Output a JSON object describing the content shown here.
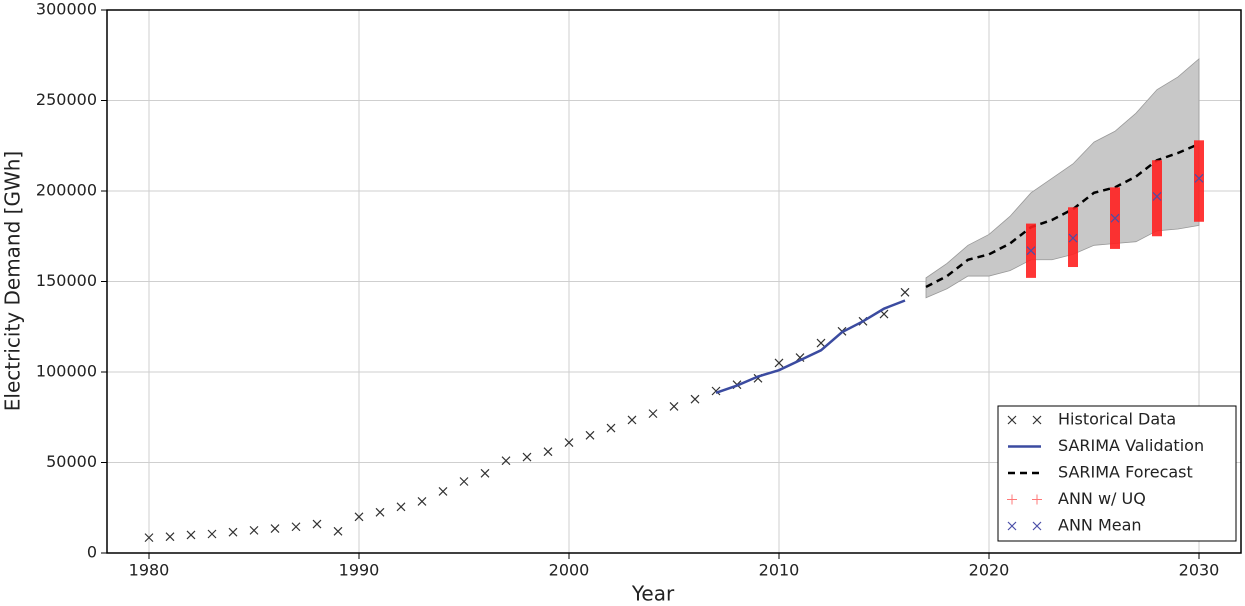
{
  "chart_data": {
    "type": "line",
    "xlabel": "Year",
    "ylabel": "Electricity Demand [GWh]",
    "xlim": [
      1978,
      2032
    ],
    "ylim": [
      0,
      300000
    ],
    "xticks": [
      1980,
      1990,
      2000,
      2010,
      2020,
      2030
    ],
    "yticks": [
      0,
      50000,
      100000,
      150000,
      200000,
      250000,
      300000
    ],
    "grid": true,
    "legend": "lower right",
    "series": [
      {
        "name": "Historical Data",
        "style": "x-marker",
        "color": "#333333",
        "x": [
          1980,
          1981,
          1982,
          1983,
          1984,
          1985,
          1986,
          1987,
          1988,
          1989,
          1990,
          1991,
          1992,
          1993,
          1994,
          1995,
          1996,
          1997,
          1998,
          1999,
          2000,
          2001,
          2002,
          2003,
          2004,
          2005,
          2006,
          2007,
          2008,
          2009,
          2010,
          2011,
          2012,
          2013,
          2014,
          2015,
          2016
        ],
        "values": [
          8500,
          9000,
          10000,
          10500,
          11500,
          12500,
          13500,
          14500,
          16000,
          12000,
          20000,
          22500,
          25500,
          28500,
          34000,
          39500,
          44000,
          51000,
          53000,
          56000,
          61000,
          65000,
          69000,
          73500,
          77000,
          81000,
          85000,
          89500,
          93000,
          96500,
          105000,
          108000,
          116000,
          122500,
          128000,
          132000,
          144000
        ]
      },
      {
        "name": "SARIMA Validation",
        "style": "line",
        "color": "#3b4ba0",
        "x": [
          2007,
          2008,
          2009,
          2010,
          2011,
          2012,
          2013,
          2014,
          2015,
          2016
        ],
        "values": [
          88500,
          92500,
          97500,
          101000,
          106500,
          112000,
          122000,
          128000,
          135000,
          139500
        ]
      },
      {
        "name": "SARIMA Forecast",
        "style": "dashed",
        "color": "#000000",
        "x": [
          2017,
          2018,
          2019,
          2020,
          2021,
          2022,
          2023,
          2024,
          2025,
          2026,
          2027,
          2028,
          2029,
          2030
        ],
        "values": [
          147000,
          153000,
          162000,
          165000,
          171000,
          180000,
          184000,
          190000,
          199000,
          202000,
          208000,
          217000,
          221000,
          226000
        ]
      },
      {
        "name": "ANN w/ UQ",
        "style": "range",
        "color": "#ff2020",
        "x": [
          2022,
          2024,
          2026,
          2028,
          2030
        ],
        "low": [
          152000,
          158000,
          168000,
          175000,
          183000
        ],
        "high": [
          182000,
          191000,
          202000,
          217000,
          228000
        ]
      },
      {
        "name": "ANN Mean",
        "style": "x-marker",
        "color": "#4b4fa8",
        "x": [
          2022,
          2024,
          2026,
          2028,
          2030
        ],
        "values": [
          167000,
          174000,
          185000,
          197000,
          207000
        ]
      }
    ],
    "forecast_band": {
      "color": "#c8c8c8",
      "x": [
        2017,
        2018,
        2019,
        2020,
        2021,
        2022,
        2023,
        2024,
        2025,
        2026,
        2027,
        2028,
        2029,
        2030
      ],
      "lower": [
        141000,
        146000,
        153000,
        153000,
        156000,
        162000,
        162000,
        165000,
        170000,
        171000,
        172000,
        178000,
        179000,
        181000
      ],
      "upper": [
        152000,
        160000,
        170000,
        176000,
        186000,
        199000,
        207000,
        215000,
        227000,
        233000,
        243000,
        256000,
        263000,
        273000
      ]
    }
  }
}
